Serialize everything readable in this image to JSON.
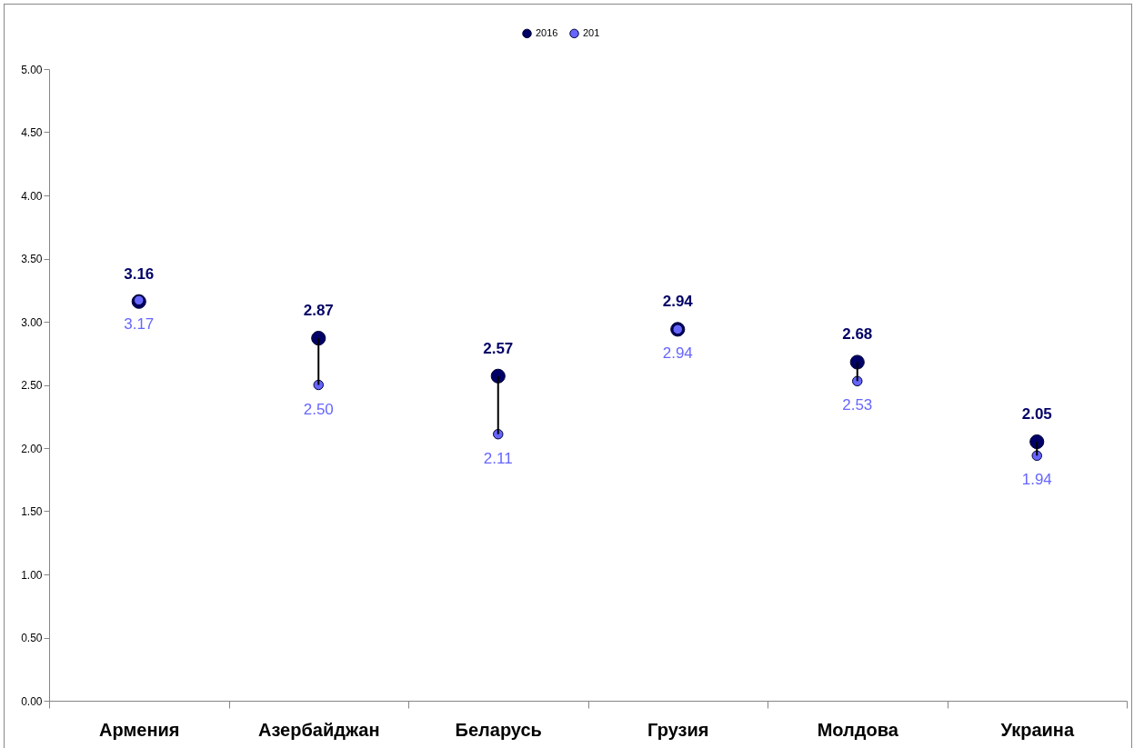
{
  "chart_data": {
    "type": "scatter",
    "categories": [
      "Армения",
      "Азербайджан",
      "Беларусь",
      "Грузия",
      "Молдова",
      "Украина"
    ],
    "series": [
      {
        "name": "2016",
        "color": "#000066",
        "values": [
          3.16,
          2.87,
          2.57,
          2.94,
          2.68,
          2.05
        ],
        "value_labels": [
          "3.16",
          "2.87",
          "2.57",
          "2.94",
          "2.68",
          "2.05"
        ]
      },
      {
        "type": "line",
        "color": "#000000",
        "x": [
          "Азербайджан",
          "Азербайджан"
        ],
        "values": [
          2.87,
          2.5
        ],
        "marker": "none"
      },
      {
        "type": "line",
        "color": "#000000",
        "x": [
          "Беларусь",
          "Беларусь"
        ],
        "values": [
          2.57,
          2.11
        ],
        "marker": "none"
      },
      {
        "type": "line",
        "color": "#000000",
        "x": [
          "Молдова",
          "Молдова"
        ],
        "values": [
          2.68,
          2.53
        ],
        "marker": "none"
      },
      {
        "type": "line",
        "color": "#000000",
        "x": [
          "Украина",
          "Украина"
        ],
        "values": [
          2.05,
          1.94
        ],
        "marker": "none"
      },
      {
        "name": "201",
        "color": "#6666ff",
        "values": [
          3.17,
          2.5,
          2.11,
          2.94,
          2.53,
          1.94
        ],
        "value_labels": [
          "3.17",
          "2.50",
          "2.11",
          "2.94",
          "2.53",
          "1.94"
        ]
      }
    ],
    "ylim": [
      0,
      5
    ],
    "yticks": [
      {
        "value": 0,
        "label": "0.00"
      },
      {
        "value": 0.5,
        "label": "0.50"
      },
      {
        "value": 1,
        "label": "1.00"
      },
      {
        "value": 1.5,
        "label": "1.50"
      },
      {
        "value": 2,
        "label": "2.00"
      },
      {
        "value": 2.5,
        "label": "2.50"
      },
      {
        "value": 3,
        "label": "3.00"
      },
      {
        "value": 3.5,
        "label": "3.50"
      },
      {
        "value": 4,
        "label": "4.00"
      },
      {
        "value": 4.5,
        "label": "4.50"
      },
      {
        "value": 5,
        "label": "5.00"
      }
    ],
    "legend": "top",
    "marker": "circle"
  }
}
